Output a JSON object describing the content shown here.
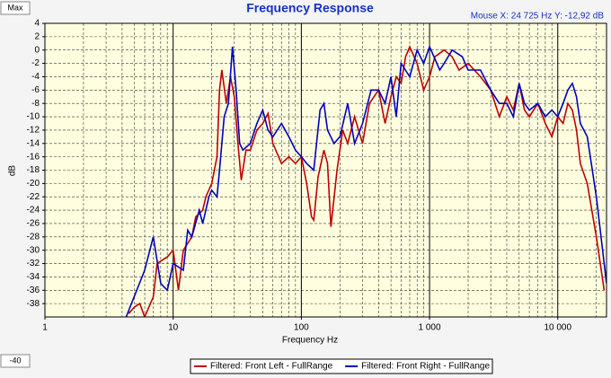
{
  "chart_data": {
    "type": "line",
    "title": "Frequency Response",
    "cursor_readout": "Mouse X: 24 725 Hz  Y: -12,92 dB",
    "max_button": "Max",
    "min_button": "-40",
    "xlabel": "Frequency Hz",
    "ylabel": "dB",
    "xscale": "log",
    "grid": true,
    "minor_grid": true,
    "background": "#ffffe0",
    "xlim": [
      1,
      24000
    ],
    "ylim": [
      -40,
      4
    ],
    "xticks": [
      1,
      10,
      100,
      {
        "value": 1000,
        "label": "1 000"
      },
      {
        "value": 10000,
        "label": "10 000"
      }
    ],
    "yticks": [
      4,
      2,
      0,
      -2,
      -4,
      -6,
      -8,
      -10,
      -12,
      -14,
      -16,
      -18,
      -20,
      -22,
      -24,
      -26,
      -28,
      -30,
      -32,
      -34,
      -36,
      -38
    ],
    "legend": "bottom",
    "series": [
      {
        "name": "Filtered: Front Left - FullRange",
        "color": "#c00000",
        "x": [
          4.5,
          5,
          5.5,
          6,
          7,
          7.5,
          9,
          10,
          11,
          12,
          14,
          15,
          17,
          18,
          20,
          22,
          23,
          24,
          26,
          28,
          30,
          32,
          34,
          37,
          40,
          45,
          50,
          55,
          60,
          70,
          80,
          90,
          100,
          110,
          120,
          125,
          135,
          150,
          160,
          170,
          190,
          210,
          230,
          260,
          300,
          340,
          400,
          450,
          500,
          550,
          600,
          650,
          700,
          800,
          900,
          1000,
          1100,
          1300,
          1500,
          1700,
          2000,
          2500,
          3000,
          3500,
          4000,
          4500,
          5000,
          5500,
          6000,
          7000,
          8000,
          9000,
          10000,
          11000,
          12000,
          13000,
          14000,
          15000,
          17000,
          20000,
          23000
        ],
        "values": [
          -39.5,
          -38.5,
          -38,
          -40,
          -37,
          -32,
          -31,
          -30,
          -36,
          -30,
          -28,
          -25,
          -24,
          -22,
          -20,
          -16,
          -6,
          -3,
          -8,
          -4,
          -7,
          -14,
          -19.5,
          -15,
          -15,
          -12,
          -11,
          -9.5,
          -14,
          -17,
          -16,
          -17,
          -16,
          -20,
          -25,
          -25.5,
          -19,
          -15,
          -17,
          -26.5,
          -18,
          -12,
          -14,
          -10,
          -14,
          -8,
          -6,
          -11,
          -7,
          -4,
          -5,
          -1,
          0.5,
          -2,
          -6,
          -4,
          -1,
          0,
          -1,
          -3,
          -2,
          -4,
          -6,
          -10,
          -7,
          -9,
          -5,
          -9,
          -10,
          -8,
          -11,
          -13,
          -10,
          -11,
          -8,
          -9,
          -12,
          -17,
          -20,
          -28,
          -36
        ]
      },
      {
        "name": "Filtered: Front Right - FullRange",
        "color": "#0000c0",
        "x": [
          4.3,
          6,
          7,
          8,
          9,
          10,
          12,
          13,
          14,
          16,
          17,
          19,
          20,
          22,
          23,
          25,
          27,
          29,
          31,
          33,
          35,
          40,
          45,
          50,
          55,
          60,
          70,
          80,
          90,
          100,
          110,
          125,
          140,
          150,
          160,
          180,
          200,
          230,
          260,
          300,
          350,
          400,
          450,
          500,
          550,
          600,
          700,
          800,
          900,
          1000,
          1200,
          1300,
          1500,
          1800,
          2000,
          2500,
          3000,
          3500,
          4000,
          4500,
          5000,
          5500,
          6000,
          7000,
          8000,
          9000,
          10000,
          11000,
          12000,
          13000,
          14000,
          15000,
          17000,
          20000,
          24000
        ],
        "values": [
          -40,
          -33,
          -28,
          -35,
          -36,
          -32,
          -33,
          -27,
          -28,
          -24,
          -26,
          -22,
          -21,
          -22,
          -18,
          -10,
          -8,
          0.5,
          -6,
          -14,
          -15,
          -14,
          -11,
          -9,
          -12,
          -13,
          -11,
          -13,
          -15,
          -16,
          -17,
          -18,
          -9,
          -8,
          -12,
          -14,
          -13,
          -8,
          -14,
          -11,
          -6,
          -6,
          -8,
          -4,
          -10,
          -2,
          -4,
          0,
          -2,
          0.5,
          -3,
          -2,
          0,
          -1,
          -3,
          -3,
          -6,
          -8,
          -8,
          -10,
          -5,
          -8,
          -9,
          -8,
          -10,
          -9,
          -10,
          -8,
          -6,
          -5,
          -7,
          -11,
          -13,
          -22,
          -35
        ]
      }
    ]
  }
}
